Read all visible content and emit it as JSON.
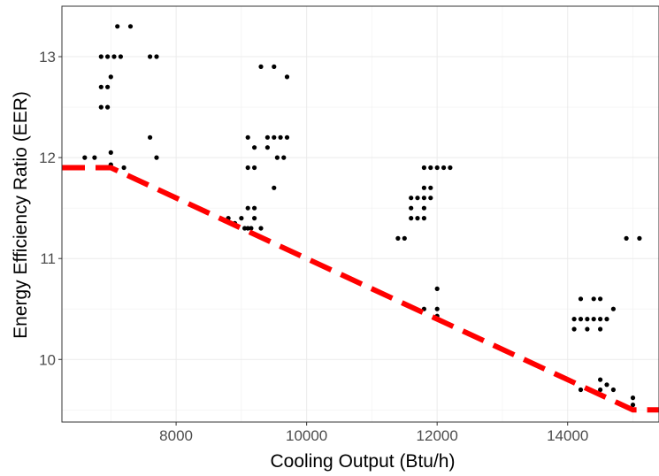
{
  "chart_data": {
    "type": "scatter",
    "xlabel": "Cooling Output (Btu/h)",
    "ylabel": "Energy Efficiency Ratio (EER)",
    "xlim": [
      6250,
      15400
    ],
    "ylim": [
      9.38,
      13.5
    ],
    "x_ticks": [
      8000,
      10000,
      12000,
      14000
    ],
    "x_tick_labels": [
      "8000",
      "10000",
      "12000",
      "14000"
    ],
    "y_ticks": [
      10,
      11,
      12,
      13
    ],
    "y_tick_labels": [
      "10",
      "11",
      "12",
      "13"
    ],
    "grid": true,
    "point_color": "#000000",
    "line_color": "#ff0000",
    "points": [
      [
        6600,
        12.0
      ],
      [
        6750,
        12.0
      ],
      [
        6850,
        12.7
      ],
      [
        6850,
        13.0
      ],
      [
        6850,
        12.5
      ],
      [
        6950,
        12.7
      ],
      [
        6950,
        12.5
      ],
      [
        6950,
        13.0
      ],
      [
        7000,
        12.8
      ],
      [
        7000,
        12.05
      ],
      [
        7000,
        11.93
      ],
      [
        7050,
        13.0
      ],
      [
        7100,
        13.3
      ],
      [
        7150,
        13.0
      ],
      [
        7200,
        11.9
      ],
      [
        7300,
        13.3
      ],
      [
        7600,
        12.2
      ],
      [
        7600,
        13.0
      ],
      [
        7700,
        13.0
      ],
      [
        7700,
        12.0
      ],
      [
        8800,
        11.4
      ],
      [
        8900,
        11.35
      ],
      [
        9000,
        11.4
      ],
      [
        9050,
        11.3
      ],
      [
        9100,
        11.3
      ],
      [
        9100,
        12.2
      ],
      [
        9100,
        11.9
      ],
      [
        9100,
        11.5
      ],
      [
        9150,
        11.3
      ],
      [
        9200,
        12.1
      ],
      [
        9200,
        11.9
      ],
      [
        9200,
        11.5
      ],
      [
        9200,
        11.4
      ],
      [
        9300,
        11.3
      ],
      [
        9300,
        12.9
      ],
      [
        9400,
        12.2
      ],
      [
        9400,
        12.1
      ],
      [
        9500,
        12.9
      ],
      [
        9500,
        12.2
      ],
      [
        9500,
        11.7
      ],
      [
        9550,
        12.0
      ],
      [
        9600,
        12.2
      ],
      [
        9650,
        12.0
      ],
      [
        9700,
        12.2
      ],
      [
        9700,
        12.8
      ],
      [
        11400,
        11.2
      ],
      [
        11500,
        11.2
      ],
      [
        11600,
        11.6
      ],
      [
        11600,
        11.5
      ],
      [
        11600,
        11.4
      ],
      [
        11700,
        11.6
      ],
      [
        11700,
        11.4
      ],
      [
        11800,
        11.9
      ],
      [
        11800,
        11.7
      ],
      [
        11800,
        11.6
      ],
      [
        11800,
        11.5
      ],
      [
        11800,
        11.4
      ],
      [
        11800,
        10.5
      ],
      [
        11900,
        11.9
      ],
      [
        11900,
        11.7
      ],
      [
        11900,
        11.6
      ],
      [
        12000,
        11.9
      ],
      [
        12000,
        10.7
      ],
      [
        12000,
        10.5
      ],
      [
        12000,
        10.43
      ],
      [
        12100,
        11.9
      ],
      [
        12200,
        11.9
      ],
      [
        14100,
        10.4
      ],
      [
        14100,
        10.3
      ],
      [
        14200,
        10.6
      ],
      [
        14200,
        10.4
      ],
      [
        14200,
        9.7
      ],
      [
        14300,
        10.4
      ],
      [
        14300,
        10.3
      ],
      [
        14400,
        10.6
      ],
      [
        14400,
        10.4
      ],
      [
        14500,
        10.6
      ],
      [
        14500,
        10.4
      ],
      [
        14500,
        10.3
      ],
      [
        14500,
        9.8
      ],
      [
        14500,
        9.7
      ],
      [
        14600,
        10.4
      ],
      [
        14600,
        9.75
      ],
      [
        14700,
        10.5
      ],
      [
        14700,
        9.7
      ],
      [
        14900,
        11.2
      ],
      [
        15000,
        9.62
      ],
      [
        15000,
        9.55
      ],
      [
        15100,
        11.2
      ]
    ],
    "reference_line": {
      "style": "dashed",
      "x": [
        6250,
        7000,
        15000,
        15400
      ],
      "y": [
        11.9,
        11.9,
        9.5,
        9.5
      ]
    }
  }
}
